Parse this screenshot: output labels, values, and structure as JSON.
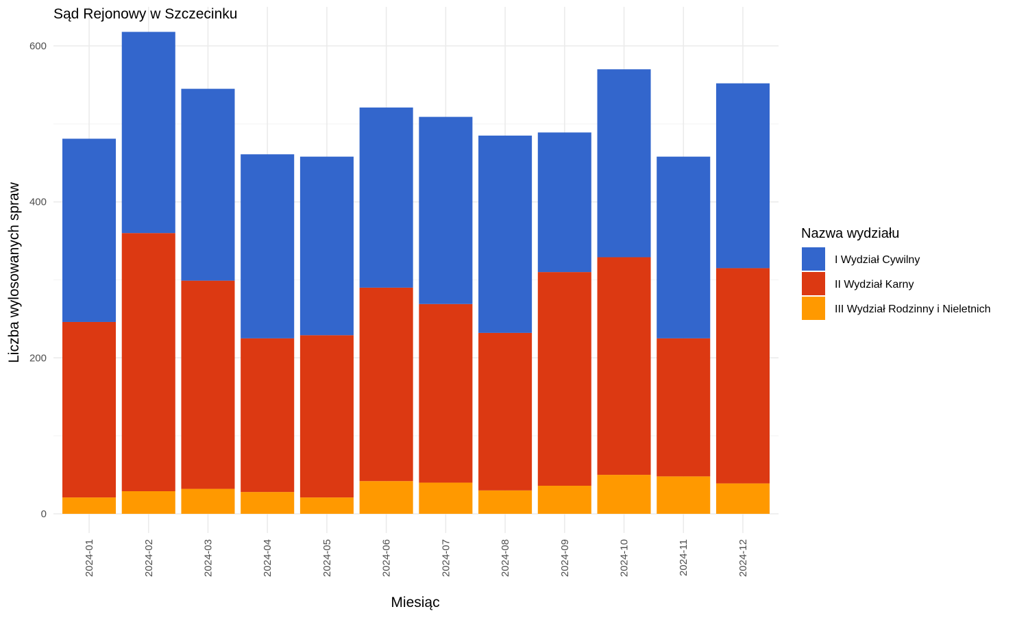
{
  "chart_data": {
    "type": "bar",
    "stacked": true,
    "title": "Sąd Rejonowy w Szczecinku",
    "xlabel": "Miesiąc",
    "ylabel": "Liczba wylosowanych spraw",
    "ylim": [
      -25,
      625
    ],
    "yticks": [
      0,
      200,
      400,
      600
    ],
    "grid": true,
    "legend_position": "right",
    "legend_title": "Nazwa wydziału",
    "categories": [
      "2024-01",
      "2024-02",
      "2024-03",
      "2024-04",
      "2024-05",
      "2024-06",
      "2024-07",
      "2024-08",
      "2024-09",
      "2024-10",
      "2024-11",
      "2024-12"
    ],
    "series": [
      {
        "name": "III Wydział Rodzinny i Nieletnich",
        "color": "#FF9900",
        "values": [
          21,
          29,
          32,
          28,
          21,
          42,
          40,
          30,
          36,
          50,
          48,
          39
        ]
      },
      {
        "name": "II Wydział Karny",
        "color": "#DC3912",
        "values": [
          225,
          331,
          267,
          197,
          208,
          248,
          229,
          202,
          274,
          279,
          177,
          276
        ]
      },
      {
        "name": "I Wydział Cywilny",
        "color": "#3366CC",
        "values": [
          235,
          258,
          246,
          236,
          229,
          231,
          240,
          253,
          179,
          241,
          233,
          237
        ]
      }
    ],
    "legend_order": [
      "I Wydział Cywilny",
      "II Wydział Karny",
      "III Wydział Rodzinny i Nieletnich"
    ]
  }
}
